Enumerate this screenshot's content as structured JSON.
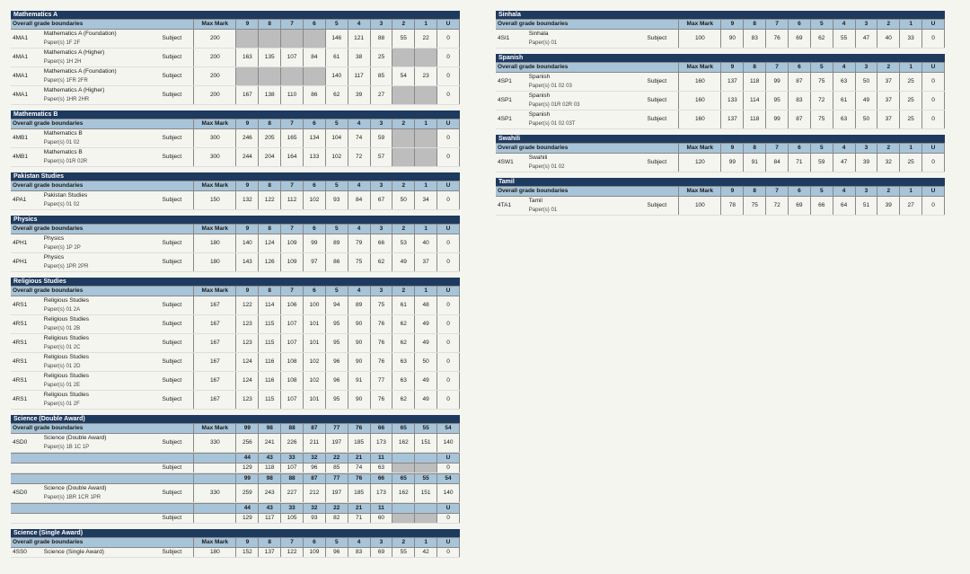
{
  "labels": {
    "ogb": "Overall grade boundaries",
    "subject": "Subject",
    "maxmark": "Max Mark"
  },
  "left": [
    {
      "title": "Mathematics A",
      "segments": [
        {
          "grades": [
            "9",
            "8",
            "7",
            "6",
            "5",
            "4",
            "3",
            "2",
            "1",
            "U"
          ],
          "rows": [
            {
              "code": "4MA1",
              "desc": "Mathematics A (Foundation)",
              "papers": "Paper(s) 1F 2F",
              "mm": "200",
              "vals": [
                "",
                "",
                "",
                "",
                "146",
                "121",
                "88",
                "55",
                "22",
                "0"
              ],
              "gray": [
                0,
                1,
                2,
                3
              ]
            },
            {
              "code": "4MA1",
              "desc": "Mathematics A (Higher)",
              "papers": "Paper(s) 1H 2H",
              "mm": "200",
              "vals": [
                "163",
                "135",
                "107",
                "84",
                "61",
                "38",
                "25",
                "",
                "",
                "0"
              ],
              "gray": [
                7,
                8
              ]
            },
            {
              "code": "4MA1",
              "desc": "Mathematics A (Foundation)",
              "papers": "Paper(s) 1FR 2FR",
              "mm": "200",
              "vals": [
                "",
                "",
                "",
                "",
                "140",
                "117",
                "85",
                "54",
                "23",
                "0"
              ],
              "gray": [
                0,
                1,
                2,
                3
              ]
            },
            {
              "code": "4MA1",
              "desc": "Mathematics A (Higher)",
              "papers": "Paper(s) 1HR 2HR",
              "mm": "200",
              "vals": [
                "167",
                "138",
                "110",
                "86",
                "62",
                "39",
                "27",
                "",
                "",
                "0"
              ],
              "gray": [
                7,
                8
              ]
            }
          ]
        }
      ]
    },
    {
      "title": "Mathematics B",
      "segments": [
        {
          "grades": [
            "9",
            "8",
            "7",
            "6",
            "5",
            "4",
            "3",
            "2",
            "1",
            "U"
          ],
          "rows": [
            {
              "code": "4MB1",
              "desc": "Mathematics B",
              "papers": "Paper(s) 01 02",
              "mm": "300",
              "vals": [
                "246",
                "205",
                "165",
                "134",
                "104",
                "74",
                "59",
                "",
                "",
                "0"
              ],
              "gray": [
                7,
                8
              ]
            },
            {
              "code": "4MB1",
              "desc": "Mathematics B",
              "papers": "Paper(s) 01R 02R",
              "mm": "300",
              "vals": [
                "244",
                "204",
                "164",
                "133",
                "102",
                "72",
                "57",
                "",
                "",
                "0"
              ],
              "gray": [
                7,
                8
              ]
            }
          ]
        }
      ]
    },
    {
      "title": "Pakistan Studies",
      "segments": [
        {
          "grades": [
            "9",
            "8",
            "7",
            "6",
            "5",
            "4",
            "3",
            "2",
            "1",
            "U"
          ],
          "rows": [
            {
              "code": "4PA1",
              "desc": "Pakistan Studies",
              "papers": "Paper(s) 01 02",
              "mm": "150",
              "vals": [
                "132",
                "122",
                "112",
                "102",
                "93",
                "84",
                "67",
                "50",
                "34",
                "0"
              ]
            }
          ]
        }
      ]
    },
    {
      "title": "Physics",
      "segments": [
        {
          "grades": [
            "9",
            "8",
            "7",
            "6",
            "5",
            "4",
            "3",
            "2",
            "1",
            "U"
          ],
          "rows": [
            {
              "code": "4PH1",
              "desc": "Physics",
              "papers": "Paper(s) 1P 2P",
              "mm": "180",
              "vals": [
                "140",
                "124",
                "109",
                "99",
                "89",
                "79",
                "66",
                "53",
                "40",
                "0"
              ]
            },
            {
              "code": "4PH1",
              "desc": "Physics",
              "papers": "Paper(s) 1PR 2PR",
              "mm": "180",
              "vals": [
                "143",
                "126",
                "109",
                "97",
                "86",
                "75",
                "62",
                "49",
                "37",
                "0"
              ]
            }
          ]
        }
      ]
    },
    {
      "title": "Religious Studies",
      "segments": [
        {
          "grades": [
            "9",
            "8",
            "7",
            "6",
            "5",
            "4",
            "3",
            "2",
            "1",
            "U"
          ],
          "rows": [
            {
              "code": "4RS1",
              "desc": "Religious Studies",
              "papers": "Paper(s) 01 2A",
              "mm": "167",
              "vals": [
                "122",
                "114",
                "106",
                "100",
                "94",
                "89",
                "75",
                "61",
                "48",
                "0"
              ]
            },
            {
              "code": "4RS1",
              "desc": "Religious Studies",
              "papers": "Paper(s) 01 2B",
              "mm": "167",
              "vals": [
                "123",
                "115",
                "107",
                "101",
                "95",
                "90",
                "76",
                "62",
                "49",
                "0"
              ]
            },
            {
              "code": "4RS1",
              "desc": "Religious Studies",
              "papers": "Paper(s) 01 2C",
              "mm": "167",
              "vals": [
                "123",
                "115",
                "107",
                "101",
                "95",
                "90",
                "76",
                "62",
                "49",
                "0"
              ]
            },
            {
              "code": "4RS1",
              "desc": "Religious Studies",
              "papers": "Paper(s) 01 2D",
              "mm": "167",
              "vals": [
                "124",
                "116",
                "108",
                "102",
                "96",
                "90",
                "76",
                "63",
                "50",
                "0"
              ]
            },
            {
              "code": "4RS1",
              "desc": "Religious Studies",
              "papers": "Paper(s) 01 2E",
              "mm": "167",
              "vals": [
                "124",
                "116",
                "108",
                "102",
                "96",
                "91",
                "77",
                "63",
                "49",
                "0"
              ]
            },
            {
              "code": "4RS1",
              "desc": "Religious Studies",
              "papers": "Paper(s) 01 2F",
              "mm": "167",
              "vals": [
                "123",
                "115",
                "107",
                "101",
                "95",
                "90",
                "76",
                "62",
                "49",
                "0"
              ]
            }
          ]
        }
      ]
    },
    {
      "title": "Science (Double Award)",
      "segments": [
        {
          "grades": [
            "99",
            "98",
            "88",
            "87",
            "77",
            "76",
            "66",
            "65",
            "55",
            "54"
          ],
          "rows": [
            {
              "code": "4SD0",
              "desc": "Science (Double Award)",
              "papers": "Paper(s) 1B 1C 1P",
              "mm": "330",
              "vals": [
                "256",
                "241",
                "226",
                "211",
                "197",
                "185",
                "173",
                "162",
                "151",
                "140"
              ]
            }
          ]
        },
        {
          "grades": [
            "44",
            "43",
            "33",
            "32",
            "22",
            "21",
            "11",
            "",
            "",
            "U"
          ],
          "rows": [
            {
              "code": "",
              "desc": "",
              "papers": "",
              "mm": "",
              "vals": [
                "129",
                "118",
                "107",
                "96",
                "85",
                "74",
                "63",
                "",
                "",
                "0"
              ],
              "gray": [
                7,
                8
              ]
            }
          ]
        },
        {
          "grades": [
            "99",
            "98",
            "88",
            "87",
            "77",
            "76",
            "66",
            "65",
            "55",
            "54"
          ],
          "rows": [
            {
              "code": "4SD0",
              "desc": "Science (Double Award)",
              "papers": "Paper(s) 1BR 1CR 1PR",
              "mm": "330",
              "vals": [
                "259",
                "243",
                "227",
                "212",
                "197",
                "185",
                "173",
                "162",
                "151",
                "140"
              ]
            }
          ]
        },
        {
          "grades": [
            "44",
            "43",
            "33",
            "32",
            "22",
            "21",
            "11",
            "",
            "",
            "U"
          ],
          "rows": [
            {
              "code": "",
              "desc": "",
              "papers": "",
              "mm": "",
              "vals": [
                "129",
                "117",
                "105",
                "93",
                "82",
                "71",
                "60",
                "",
                "",
                "0"
              ],
              "gray": [
                7,
                8
              ]
            }
          ]
        }
      ]
    },
    {
      "title": "Science (Single Award)",
      "segments": [
        {
          "grades": [
            "9",
            "8",
            "7",
            "6",
            "5",
            "4",
            "3",
            "2",
            "1",
            "U"
          ],
          "rows": [
            {
              "code": "4SS0",
              "desc": "Science (Single Award)",
              "papers": "",
              "mm": "180",
              "vals": [
                "152",
                "137",
                "122",
                "109",
                "96",
                "83",
                "69",
                "55",
                "42",
                "0"
              ]
            }
          ]
        }
      ]
    }
  ],
  "right": [
    {
      "title": "Sinhala",
      "segments": [
        {
          "grades": [
            "9",
            "8",
            "7",
            "6",
            "5",
            "4",
            "3",
            "2",
            "1",
            "U"
          ],
          "rows": [
            {
              "code": "4SI1",
              "desc": "Sinhala",
              "papers": "Paper(s) 01",
              "mm": "100",
              "vals": [
                "90",
                "83",
                "76",
                "69",
                "62",
                "55",
                "47",
                "40",
                "33",
                "0"
              ]
            }
          ]
        }
      ]
    },
    {
      "title": "Spanish",
      "segments": [
        {
          "grades": [
            "9",
            "8",
            "7",
            "6",
            "5",
            "4",
            "3",
            "2",
            "1",
            "U"
          ],
          "rows": [
            {
              "code": "4SP1",
              "desc": "Spanish",
              "papers": "Paper(s) 01 02 03",
              "mm": "160",
              "vals": [
                "137",
                "118",
                "99",
                "87",
                "75",
                "63",
                "50",
                "37",
                "25",
                "0"
              ]
            },
            {
              "code": "4SP1",
              "desc": "Spanish",
              "papers": "Paper(s) 01R 02R 03",
              "mm": "160",
              "vals": [
                "133",
                "114",
                "95",
                "83",
                "72",
                "61",
                "49",
                "37",
                "25",
                "0"
              ]
            },
            {
              "code": "4SP1",
              "desc": "Spanish",
              "papers": "Paper(s) 01 02 03T",
              "mm": "160",
              "vals": [
                "137",
                "118",
                "99",
                "87",
                "75",
                "63",
                "50",
                "37",
                "25",
                "0"
              ]
            }
          ]
        }
      ]
    },
    {
      "title": "Swahili",
      "segments": [
        {
          "grades": [
            "9",
            "8",
            "7",
            "6",
            "5",
            "4",
            "3",
            "2",
            "1",
            "U"
          ],
          "rows": [
            {
              "code": "4SW1",
              "desc": "Swahili",
              "papers": "Paper(s) 01 02",
              "mm": "120",
              "vals": [
                "99",
                "91",
                "84",
                "71",
                "59",
                "47",
                "39",
                "32",
                "25",
                "0"
              ]
            }
          ]
        }
      ]
    },
    {
      "title": "Tamil",
      "segments": [
        {
          "grades": [
            "9",
            "8",
            "7",
            "6",
            "5",
            "4",
            "3",
            "2",
            "1",
            "U"
          ],
          "rows": [
            {
              "code": "4TA1",
              "desc": "Tamil",
              "papers": "Paper(s) 01",
              "mm": "100",
              "vals": [
                "78",
                "75",
                "72",
                "69",
                "66",
                "64",
                "51",
                "39",
                "27",
                "0"
              ]
            }
          ]
        }
      ]
    }
  ]
}
